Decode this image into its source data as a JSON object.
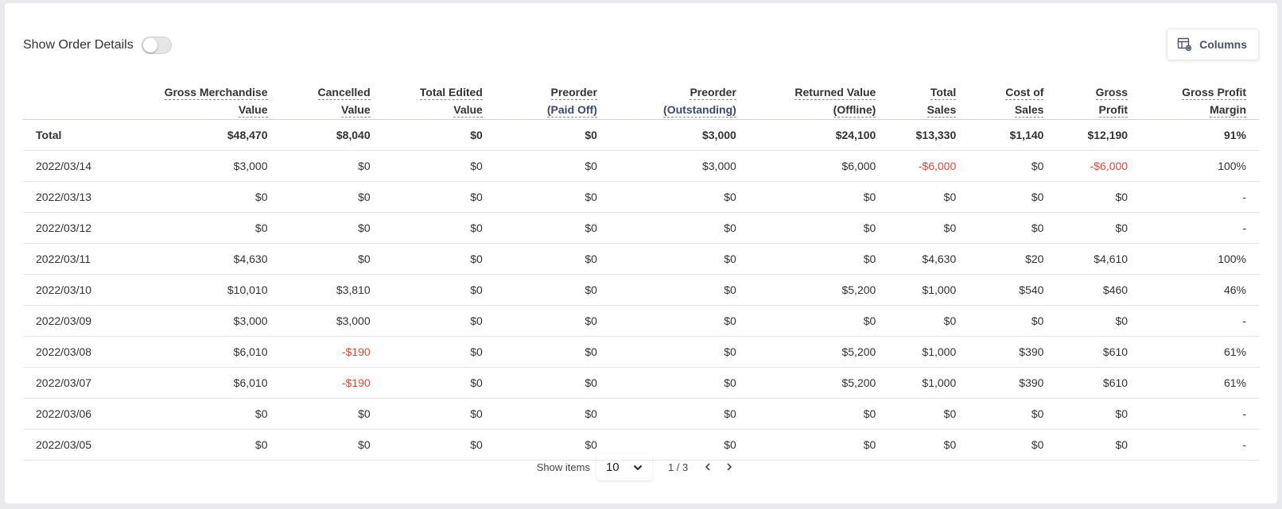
{
  "toolbar": {
    "toggle_label": "Show Order Details",
    "columns_label": "Columns"
  },
  "table": {
    "headers": [
      {
        "lines": [
          "",
          ""
        ]
      },
      {
        "lines": [
          "Gross Merchandise",
          "Value"
        ]
      },
      {
        "lines": [
          "Cancelled",
          "Value"
        ]
      },
      {
        "lines": [
          "Total Edited",
          "Value"
        ]
      },
      {
        "lines": [
          "Preorder",
          "(Paid Off)"
        ]
      },
      {
        "lines": [
          "Preorder",
          "(Outstanding)"
        ]
      },
      {
        "lines": [
          "Returned Value",
          "(Offline)"
        ]
      },
      {
        "lines": [
          "Total",
          "Sales"
        ]
      },
      {
        "lines": [
          "Cost of",
          "Sales"
        ]
      },
      {
        "lines": [
          "Gross",
          "Profit"
        ]
      },
      {
        "lines": [
          "Gross Profit",
          "Margin"
        ]
      }
    ],
    "total": [
      "Total",
      "$48,470",
      "$8,040",
      "$0",
      "$0",
      "$3,000",
      "$24,100",
      "$13,330",
      "$1,140",
      "$12,190",
      "91%"
    ],
    "rows": [
      [
        "2022/03/14",
        "$3,000",
        "$0",
        "$0",
        "$0",
        "$3,000",
        "$6,000",
        "-$6,000",
        "$0",
        "-$6,000",
        "100%"
      ],
      [
        "2022/03/13",
        "$0",
        "$0",
        "$0",
        "$0",
        "$0",
        "$0",
        "$0",
        "$0",
        "$0",
        "-"
      ],
      [
        "2022/03/12",
        "$0",
        "$0",
        "$0",
        "$0",
        "$0",
        "$0",
        "$0",
        "$0",
        "$0",
        "-"
      ],
      [
        "2022/03/11",
        "$4,630",
        "$0",
        "$0",
        "$0",
        "$0",
        "$0",
        "$4,630",
        "$20",
        "$4,610",
        "100%"
      ],
      [
        "2022/03/10",
        "$10,010",
        "$3,810",
        "$0",
        "$0",
        "$0",
        "$5,200",
        "$1,000",
        "$540",
        "$460",
        "46%"
      ],
      [
        "2022/03/09",
        "$3,000",
        "$3,000",
        "$0",
        "$0",
        "$0",
        "$0",
        "$0",
        "$0",
        "$0",
        "-"
      ],
      [
        "2022/03/08",
        "$6,010",
        "-$190",
        "$0",
        "$0",
        "$0",
        "$5,200",
        "$1,000",
        "$390",
        "$610",
        "61%"
      ],
      [
        "2022/03/07",
        "$6,010",
        "-$190",
        "$0",
        "$0",
        "$0",
        "$5,200",
        "$1,000",
        "$390",
        "$610",
        "61%"
      ],
      [
        "2022/03/06",
        "$0",
        "$0",
        "$0",
        "$0",
        "$0",
        "$0",
        "$0",
        "$0",
        "$0",
        "-"
      ],
      [
        "2022/03/05",
        "$0",
        "$0",
        "$0",
        "$0",
        "$0",
        "$0",
        "$0",
        "$0",
        "$0",
        "-"
      ]
    ]
  },
  "pagination": {
    "show_items_label": "Show items",
    "page_size": "10",
    "page_info": "1 / 3"
  },
  "colors": {
    "negative": "#e0493b",
    "header_sub": "#3b4a6b"
  },
  "icons": {
    "columns": "columns-settings-icon",
    "dropdown": "chevron-down-icon",
    "prev": "chevron-left-icon",
    "next": "chevron-right-icon"
  }
}
